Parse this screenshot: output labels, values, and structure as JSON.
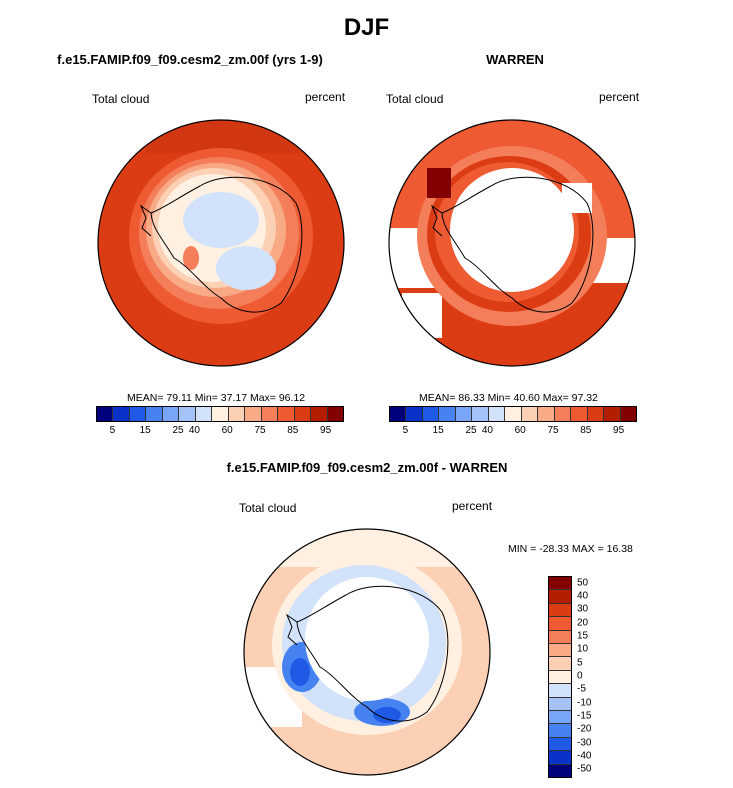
{
  "main_title": "DJF",
  "panels": [
    {
      "title": "f.e15.FAMIP.f09_f09.cesm2_zm.00f (yrs 1-9)",
      "left_label": "Total cloud",
      "right_label": "percent",
      "stats": "MEAN= 79.11  Min= 37.17  Max= 96.12"
    },
    {
      "title": "WARREN",
      "left_label": "Total cloud",
      "right_label": "percent",
      "stats": "MEAN= 86.33  Min= 40.60  Max= 97.32"
    },
    {
      "title": "f.e15.FAMIP.f09_f09.cesm2_zm.00f - WARREN",
      "left_label": "Total cloud",
      "right_label": "percent",
      "stats": "MIN = -28.33 MAX =  16.38"
    }
  ],
  "colors": {
    "abs_scale": [
      "#00007a",
      "#0a32c8",
      "#1e5ae6",
      "#4682f0",
      "#78a5f5",
      "#a5c3f8",
      "#d2e2fa",
      "#fff0e1",
      "#fcd0b4",
      "#f8aa87",
      "#f47e5a",
      "#ee5a32",
      "#dc3c14",
      "#b41e00",
      "#820000"
    ],
    "diff_scale": [
      "#00007a",
      "#0a32c8",
      "#1e5ae6",
      "#4682f0",
      "#78a5f5",
      "#a5c3f8",
      "#d2e2fa",
      "#fff0e1",
      "#fcd0b4",
      "#f8aa87",
      "#f47e5a",
      "#ee5a32",
      "#dc3c14",
      "#b41e00",
      "#820000"
    ]
  },
  "chart_data": [
    {
      "type": "heatmap",
      "projection": "south polar stereographic",
      "title": "f.e15.FAMIP.f09_f09.cesm2_zm.00f (yrs 1-9)",
      "variable": "Total cloud",
      "units": "percent",
      "mean": 79.11,
      "min": 37.17,
      "max": 96.12,
      "colorbar_ticks": [
        "5",
        "15",
        "25",
        "40",
        "60",
        "75",
        "85",
        "95"
      ],
      "zones": [
        {
          "region": "outer ocean",
          "value": 90
        },
        {
          "region": "coastal ring",
          "value": 80
        },
        {
          "region": "inner coastal ring",
          "value": 65
        },
        {
          "region": "Antarctic interior",
          "value": 45
        }
      ]
    },
    {
      "type": "heatmap",
      "projection": "south polar stereographic",
      "title": "WARREN",
      "variable": "Total cloud",
      "units": "percent",
      "mean": 86.33,
      "min": 40.6,
      "max": 97.32,
      "colorbar_ticks": [
        "5",
        "15",
        "25",
        "40",
        "60",
        "75",
        "85",
        "95"
      ],
      "zones": [
        {
          "region": "outer ocean",
          "value": 88
        },
        {
          "region": "coastal ring",
          "value": 92
        },
        {
          "region": "continent",
          "value": "missing"
        }
      ]
    },
    {
      "type": "heatmap",
      "projection": "south polar stereographic",
      "title": "f.e15.FAMIP.f09_f09.cesm2_zm.00f - WARREN",
      "variable": "Total cloud",
      "units": "percent",
      "min": -28.33,
      "max": 16.38,
      "colorbar_ticks": [
        "50",
        "40",
        "30",
        "20",
        "15",
        "10",
        "5",
        "0",
        "-5",
        "-10",
        "-15",
        "-20",
        "-30",
        "-40",
        "-50"
      ],
      "zones": [
        {
          "region": "outer ocean",
          "value": 5
        },
        {
          "region": "coastal ring",
          "value": -5
        },
        {
          "region": "Weddell / Ross coast minima",
          "value": -25
        },
        {
          "region": "continent",
          "value": "missing"
        }
      ]
    }
  ]
}
